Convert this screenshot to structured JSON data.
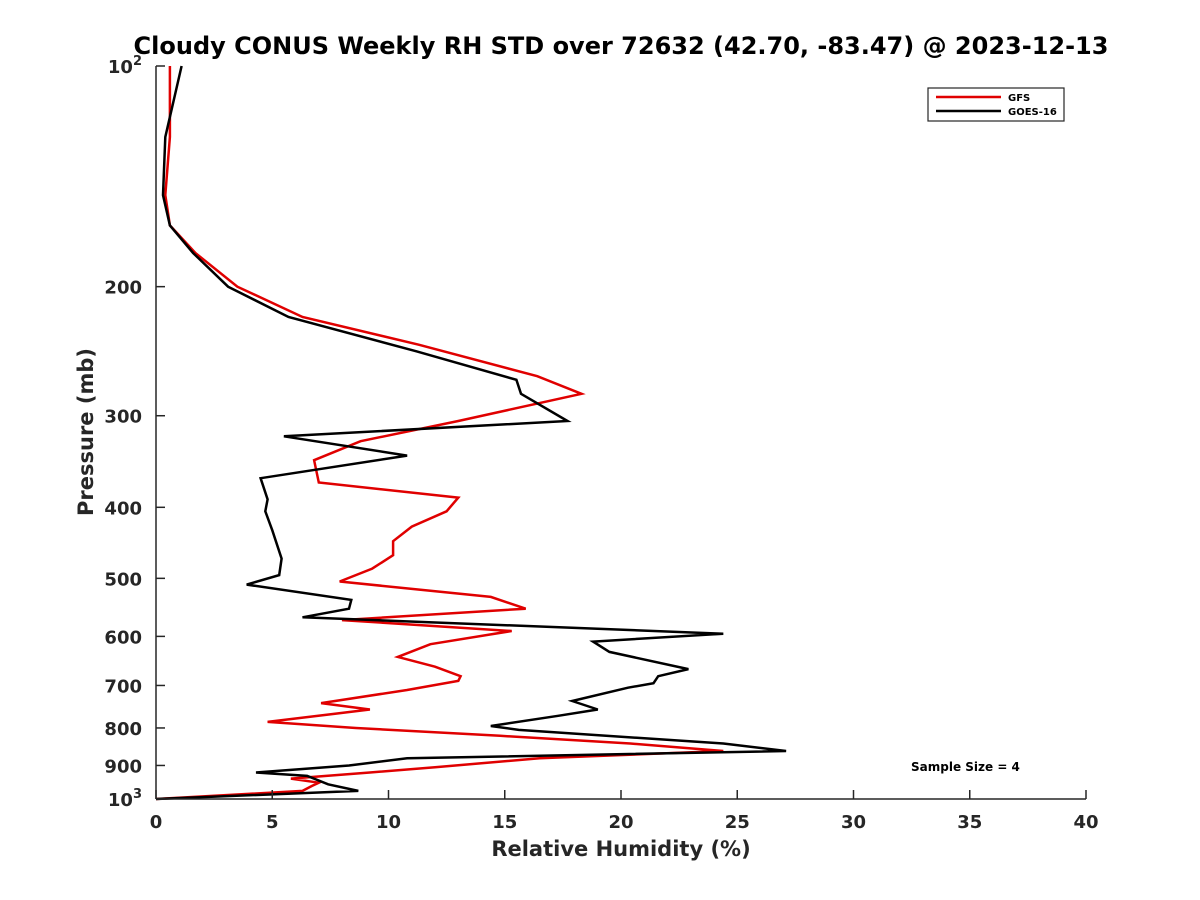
{
  "chart_data": {
    "type": "line",
    "title": "Cloudy CONUS Weekly RH STD over 72632 (42.70, -83.47) @ 2023-12-13",
    "xlabel": "Relative Humidity (%)",
    "ylabel": "Pressure (mb)",
    "xlim": [
      0,
      40
    ],
    "ylim": [
      100,
      1000
    ],
    "y_scale": "log",
    "y_reversed": true,
    "x_ticks": [
      0,
      5,
      10,
      15,
      20,
      25,
      30,
      35,
      40
    ],
    "x_tick_labels": [
      "0",
      "5",
      "10",
      "15",
      "20",
      "25",
      "30",
      "35",
      "40"
    ],
    "y_ticks": [
      100,
      200,
      300,
      400,
      500,
      600,
      700,
      800,
      900,
      1000
    ],
    "y_tick_labels": [
      "10^2",
      "200",
      "300",
      "400",
      "500",
      "600",
      "700",
      "800",
      "900",
      "10^3"
    ],
    "grid": false,
    "legend_position": "top-right",
    "annotation": "Sample Size = 4",
    "series": [
      {
        "name": "GFS",
        "color": "#e00000",
        "points": [
          [
            0.6,
            100
          ],
          [
            0.6,
            125
          ],
          [
            0.4,
            150
          ],
          [
            0.6,
            165
          ],
          [
            1.7,
            180
          ],
          [
            3.5,
            200
          ],
          [
            6.3,
            220
          ],
          [
            11.3,
            240
          ],
          [
            16.4,
            265
          ],
          [
            18.3,
            280
          ],
          [
            13.0,
            305
          ],
          [
            8.8,
            325
          ],
          [
            6.8,
            345
          ],
          [
            7.0,
            370
          ],
          [
            13.0,
            388
          ],
          [
            12.5,
            405
          ],
          [
            11.0,
            425
          ],
          [
            10.2,
            445
          ],
          [
            10.2,
            465
          ],
          [
            9.3,
            485
          ],
          [
            7.9,
            505
          ],
          [
            14.4,
            530
          ],
          [
            15.9,
            550
          ],
          [
            8.0,
            570
          ],
          [
            15.3,
            590
          ],
          [
            11.8,
            615
          ],
          [
            10.4,
            640
          ],
          [
            12.0,
            660
          ],
          [
            13.1,
            680
          ],
          [
            13.0,
            690
          ],
          [
            10.8,
            710
          ],
          [
            7.1,
            740
          ],
          [
            9.2,
            755
          ],
          [
            7.7,
            765
          ],
          [
            4.8,
            785
          ],
          [
            8.6,
            800
          ],
          [
            14.8,
            820
          ],
          [
            20.4,
            840
          ],
          [
            24.4,
            860
          ],
          [
            16.5,
            880
          ],
          [
            12.0,
            905
          ],
          [
            9.2,
            920
          ],
          [
            5.8,
            938
          ],
          [
            7.0,
            950
          ],
          [
            6.7,
            960
          ],
          [
            6.3,
            975
          ],
          [
            0.0,
            1000
          ]
        ]
      },
      {
        "name": "GOES-16",
        "color": "#000000",
        "points": [
          [
            1.1,
            100
          ],
          [
            0.4,
            125
          ],
          [
            0.3,
            150
          ],
          [
            0.6,
            165
          ],
          [
            1.6,
            180
          ],
          [
            3.1,
            200
          ],
          [
            5.7,
            220
          ],
          [
            11.2,
            245
          ],
          [
            15.5,
            268
          ],
          [
            15.7,
            280
          ],
          [
            17.7,
            305
          ],
          [
            5.5,
            320
          ],
          [
            10.8,
            340
          ],
          [
            4.5,
            365
          ],
          [
            4.8,
            390
          ],
          [
            4.7,
            405
          ],
          [
            5.0,
            430
          ],
          [
            5.4,
            470
          ],
          [
            5.3,
            495
          ],
          [
            3.9,
            510
          ],
          [
            8.4,
            535
          ],
          [
            8.3,
            550
          ],
          [
            6.3,
            565
          ],
          [
            24.4,
            595
          ],
          [
            18.8,
            610
          ],
          [
            19.5,
            630
          ],
          [
            22.9,
            665
          ],
          [
            21.6,
            680
          ],
          [
            21.4,
            695
          ],
          [
            20.3,
            705
          ],
          [
            17.9,
            735
          ],
          [
            19.0,
            755
          ],
          [
            17.3,
            770
          ],
          [
            14.4,
            795
          ],
          [
            15.6,
            805
          ],
          [
            24.4,
            840
          ],
          [
            27.1,
            860
          ],
          [
            10.8,
            880
          ],
          [
            8.3,
            900
          ],
          [
            4.3,
            920
          ],
          [
            6.5,
            930
          ],
          [
            7.4,
            955
          ],
          [
            8.7,
            975
          ],
          [
            0.0,
            1000
          ]
        ]
      }
    ]
  }
}
